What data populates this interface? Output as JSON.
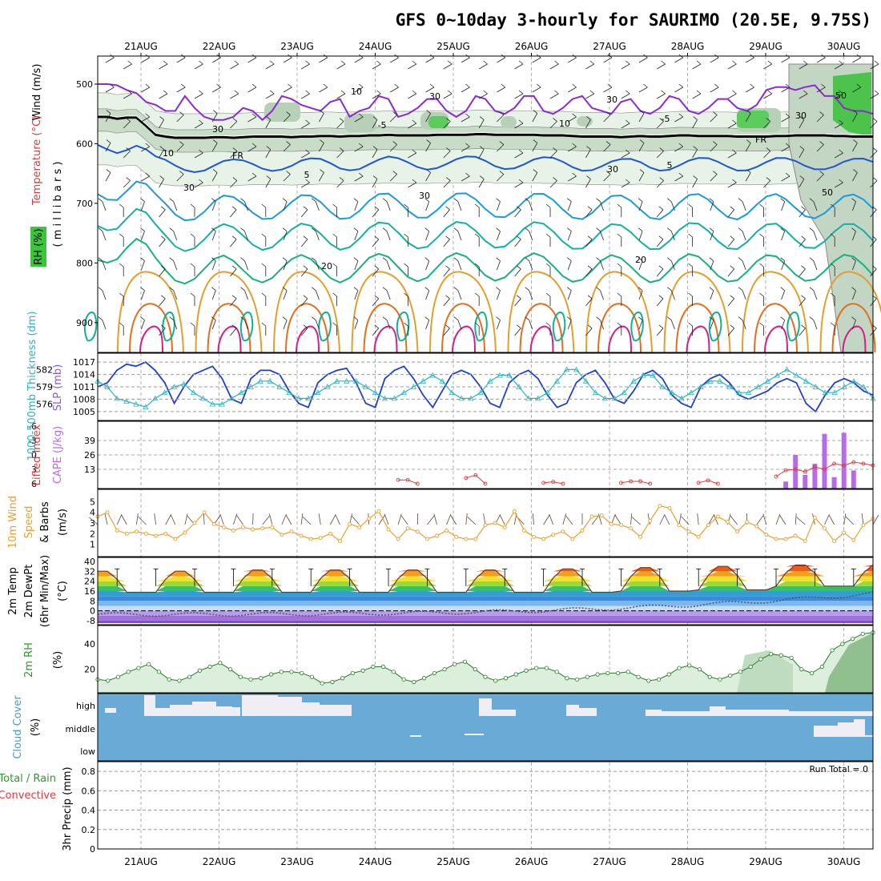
{
  "title": "GFS 0~10day 3-hourly for SAURIMO (20.5E, 9.75S)",
  "dates": [
    "21AUG",
    "22AUG",
    "23AUG",
    "24AUG",
    "25AUG",
    "26AUG",
    "27AUG",
    "28AUG",
    "29AUG",
    "30AUG"
  ],
  "colors": {
    "grid": "#b0b0b0",
    "slp": "#1f3fcc",
    "thickness": "#2cb5c0",
    "cape": "#b86be8",
    "li": "#e03a3a",
    "wind": "#e8a030",
    "rh": "#2a7a2a",
    "rhfill": "#dcefdc",
    "cloud": "#6aaad6"
  },
  "upper": {
    "labels": {
      "wind": "Wind (m/s)",
      "temp": "Temperature (°C)",
      "rh": "RH (%)",
      "pressure": "( m i l l i b a r s )"
    },
    "pressure_ticks": [
      "500",
      "600",
      "700",
      "800",
      "900"
    ],
    "contour_labels": {
      "m5": "-5",
      "p5": "5",
      "p20": "20",
      "fr": "FR",
      "rh10": "10",
      "rh30": "30",
      "rh50": "50"
    },
    "freezing_level_mb": [
      555,
      555,
      558,
      556,
      556,
      570,
      585,
      588,
      590,
      590,
      590,
      590,
      589,
      589,
      590,
      589,
      588,
      588,
      588,
      588,
      589,
      588,
      588,
      587,
      587,
      588,
      587,
      587,
      586,
      586,
      585,
      586,
      586,
      586,
      586,
      585,
      585,
      585,
      585,
      584,
      584,
      585,
      585,
      585,
      585,
      585,
      586,
      586,
      586,
      587,
      588,
      588,
      588,
      588,
      589,
      588,
      587,
      588,
      588,
      587,
      586,
      586,
      587,
      587,
      587,
      587,
      588,
      588,
      588,
      588,
      587,
      587,
      586,
      586,
      586,
      586,
      587,
      587,
      588,
      588,
      588
    ],
    "minus5_level_mb": [
      500,
      500,
      502,
      510,
      515,
      530,
      535,
      545,
      545,
      520,
      540,
      555,
      560,
      560,
      555,
      540,
      545,
      560,
      545,
      520,
      525,
      535,
      540,
      545,
      530,
      525,
      555,
      545,
      540,
      520,
      525,
      555,
      550,
      540,
      525,
      525,
      545,
      555,
      545,
      520,
      525,
      545,
      550,
      540,
      520,
      520,
      545,
      550,
      540,
      525,
      520,
      540,
      545,
      550,
      530,
      525,
      545,
      550,
      540,
      520,
      525,
      545,
      550,
      540,
      525,
      525,
      540,
      545,
      535,
      510,
      505,
      505,
      510,
      505,
      502,
      520,
      520,
      540,
      545,
      545,
      550
    ]
  },
  "slp": {
    "label": "SLP (mb)",
    "ticks": [
      "1005",
      "1008",
      "1011",
      "1014",
      "1017"
    ],
    "values": [
      1011,
      1012,
      1015,
      1016.5,
      1016,
      1017,
      1015,
      1012,
      1007,
      1011,
      1014,
      1015,
      1016,
      1013,
      1008,
      1007,
      1013,
      1015,
      1015,
      1014,
      1010,
      1007,
      1006,
      1012,
      1014,
      1015,
      1015.5,
      1012,
      1007,
      1006,
      1013,
      1015,
      1016,
      1013,
      1009,
      1006,
      1010,
      1014,
      1015,
      1014,
      1011,
      1007,
      1006,
      1012,
      1014,
      1015,
      1013,
      1009,
      1006,
      1007,
      1012,
      1014,
      1015,
      1012,
      1008,
      1007,
      1010,
      1014,
      1015,
      1013,
      1009,
      1007,
      1006,
      1011,
      1013,
      1014,
      1012,
      1009,
      1008,
      1009,
      1010,
      1012,
      1013,
      1012,
      1007,
      1005,
      1009,
      1012,
      1013,
      1012,
      1010,
      1009
    ]
  },
  "thickness": {
    "label": "1000-500mb Thickness (dm)",
    "ticks": [
      "576",
      "579",
      "582"
    ],
    "values": [
      580,
      579,
      577,
      576.5,
      576,
      575.5,
      577,
      578,
      579,
      579.5,
      578,
      577,
      576,
      576,
      577,
      578,
      579,
      580,
      580,
      579,
      578,
      577,
      577,
      578,
      579,
      580,
      580,
      580,
      579,
      578,
      577,
      577,
      578,
      579,
      580,
      581,
      580,
      578,
      577,
      577,
      578,
      580,
      581,
      581,
      579,
      577,
      577,
      578,
      580,
      582,
      582,
      580,
      578,
      577,
      577,
      578,
      580,
      581,
      581,
      579,
      578,
      577,
      578,
      579,
      580,
      580,
      579,
      578,
      578,
      579,
      580,
      581,
      582,
      581,
      580,
      579,
      578,
      578,
      579,
      580,
      579,
      577
    ]
  },
  "cape_li": {
    "li_label": "Lifted Index",
    "cape_label": "CAPE (J/kg)",
    "li_ticks": [
      "-6",
      "-3",
      "0",
      "3",
      "6"
    ],
    "cape_ticks": [
      "13",
      "26",
      "39"
    ],
    "cape_bars": [
      {
        "i": 71,
        "v": 2
      },
      {
        "i": 72,
        "v": 26
      },
      {
        "i": 73,
        "v": 8
      },
      {
        "i": 74,
        "v": 18
      },
      {
        "i": 75,
        "v": 45
      },
      {
        "i": 76,
        "v": 6
      },
      {
        "i": 77,
        "v": 46
      },
      {
        "i": 78,
        "v": 12
      }
    ],
    "li_points": [
      {
        "i": 31,
        "v": 5.2
      },
      {
        "i": 32,
        "v": 5.2
      },
      {
        "i": 33,
        "v": 6
      },
      {
        "i": 38,
        "v": 4.8
      },
      {
        "i": 39,
        "v": 4.2
      },
      {
        "i": 40,
        "v": 6
      },
      {
        "i": 46,
        "v": 5.8
      },
      {
        "i": 47,
        "v": 5.6
      },
      {
        "i": 48,
        "v": 6
      },
      {
        "i": 54,
        "v": 5.8
      },
      {
        "i": 55,
        "v": 5.5
      },
      {
        "i": 56,
        "v": 5.5
      },
      {
        "i": 57,
        "v": 6
      },
      {
        "i": 62,
        "v": 5.8
      },
      {
        "i": 63,
        "v": 5.3
      },
      {
        "i": 64,
        "v": 6
      },
      {
        "i": 70,
        "v": 4.5
      },
      {
        "i": 71,
        "v": 3.2
      },
      {
        "i": 72,
        "v": 3
      },
      {
        "i": 73,
        "v": 3.5
      },
      {
        "i": 74,
        "v": 2.5
      },
      {
        "i": 75,
        "v": 3
      },
      {
        "i": 76,
        "v": 1.8
      },
      {
        "i": 77,
        "v": 2.2
      },
      {
        "i": 78,
        "v": 1.5
      },
      {
        "i": 79,
        "v": 1.8
      },
      {
        "i": 80,
        "v": 2.2
      }
    ]
  },
  "wind10m": {
    "label_top": "10m Wind",
    "label_mid": "Speed",
    "label_bot": "& Barbs",
    "unit": "(m/s)",
    "ticks": [
      "1",
      "2",
      "3",
      "4",
      "5"
    ],
    "values": [
      3.6,
      4,
      2.3,
      2,
      2.2,
      2,
      1.8,
      2,
      1.5,
      2.1,
      3,
      4,
      2.9,
      2.6,
      2.3,
      2.6,
      2.4,
      2.5,
      2.6,
      1.9,
      2.2,
      1.8,
      1.5,
      1.6,
      2,
      1.3,
      2.9,
      2.6,
      3.4,
      4.1,
      2.4,
      1.5,
      2.5,
      2.2,
      1.5,
      1.8,
      2.3,
      1.7,
      1.5,
      1.5,
      2.8,
      3,
      2.6,
      4.1,
      2.3,
      1.7,
      1.5,
      1.9,
      2.2,
      1.5,
      2.3,
      3.6,
      3.7,
      2.9,
      2.8,
      2.5,
      1.7,
      3.2,
      4.6,
      4.4,
      2.8,
      2.2,
      1.7,
      2.8,
      3.6,
      3.1,
      2.2,
      3.1,
      2.7,
      1.9,
      1.5,
      1.5,
      1.8,
      1.3,
      3.5,
      2.5,
      1.3,
      2.1,
      1.4,
      2.8,
      3.4
    ]
  },
  "temp": {
    "label_a": "2m Temp",
    "label_b": "2m DewPt",
    "label_c": "(6hr Min/Max)",
    "unit": "(°C)",
    "ticks": [
      "-8",
      "0",
      "8",
      "16",
      "24",
      "32",
      "40"
    ],
    "max": [
      33,
      33,
      34,
      34,
      34,
      34,
      35,
      36,
      37,
      38
    ],
    "min": [
      15,
      15,
      15,
      15,
      15,
      15,
      15,
      16,
      17,
      20
    ],
    "dew_start": -3,
    "dew_end": 14
  },
  "rh2m": {
    "label": "2m RH",
    "unit": "(%)",
    "ticks": [
      "20",
      "40"
    ],
    "values": [
      12,
      11,
      14,
      18,
      21,
      24,
      18,
      12,
      11,
      14,
      19,
      22,
      25,
      20,
      14,
      12,
      13,
      16,
      18,
      18,
      17,
      14,
      9,
      10,
      13,
      17,
      19,
      22,
      22,
      18,
      12,
      10,
      13,
      17,
      20,
      24,
      26,
      20,
      14,
      11,
      13,
      16,
      19,
      21,
      21,
      18,
      13,
      12,
      14,
      16,
      17,
      17,
      18,
      14,
      11,
      12,
      16,
      21,
      23,
      20,
      14,
      12,
      15,
      18,
      22,
      28,
      32,
      31,
      29,
      20,
      17,
      22,
      35,
      40,
      44,
      48,
      49
    ]
  },
  "cloud": {
    "label": "Cloud Cover",
    "unit": "(%)",
    "levels": [
      "high",
      "middle",
      "low"
    ]
  },
  "precip": {
    "label_a": "Total / Rain",
    "label_b": "Convective",
    "label_c": "3hr Precip (mm)",
    "ticks": [
      "0",
      "0.2",
      "0.4",
      "0.6",
      "0.8"
    ],
    "run_total": "Run Total = 0"
  }
}
